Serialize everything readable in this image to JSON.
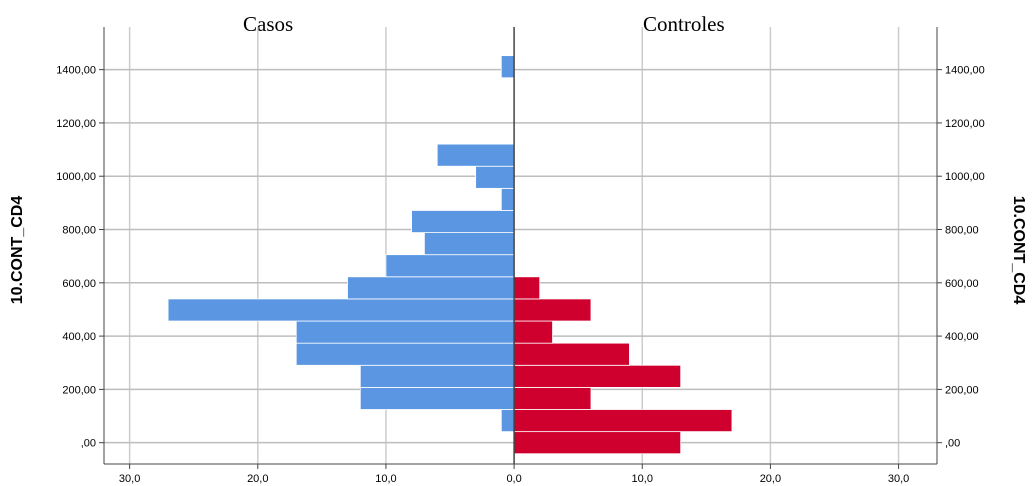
{
  "chart_data": {
    "type": "bar",
    "orientation": "horizontal",
    "panel_titles": [
      "Casos",
      "Controles"
    ],
    "ylabel": "10.CONT_CD4",
    "y_ticks": [
      ",00",
      "200,00",
      "400,00",
      "600,00",
      "800,00",
      "1000,00",
      "1200,00",
      "1400,00"
    ],
    "y_tick_values": [
      0,
      200,
      400,
      600,
      800,
      1000,
      1200,
      1400
    ],
    "ylim": [
      -80,
      1560
    ],
    "x_ticks": [
      "30,0",
      "20,0",
      "10,0",
      "0,0",
      "10,0",
      "20,0",
      "30,0"
    ],
    "xlim": [
      -32,
      33
    ],
    "grid": true,
    "bin_width": 83,
    "bin_centers": [
      0,
      83,
      166,
      249,
      332,
      415,
      498,
      581,
      664,
      747,
      830,
      913,
      996,
      1079,
      1162,
      1245,
      1328,
      1411
    ],
    "series": [
      {
        "name": "Casos",
        "color": "#5b96e3",
        "values": [
          0,
          1,
          12,
          12,
          17,
          17,
          27,
          13,
          10,
          7,
          8,
          1,
          3,
          6,
          0,
          0,
          0,
          1
        ]
      },
      {
        "name": "Controles",
        "color": "#d0002e",
        "values": [
          13,
          17,
          6,
          13,
          9,
          3,
          6,
          2,
          0,
          0,
          0,
          0,
          0,
          0,
          0,
          0,
          0,
          0
        ]
      }
    ]
  }
}
